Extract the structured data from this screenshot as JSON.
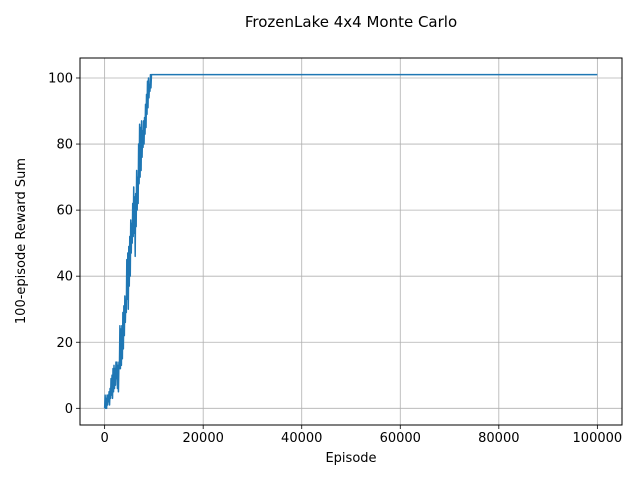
{
  "chart_data": {
    "type": "line",
    "title": "FrozenLake 4x4 Monte Carlo",
    "xlabel": "Episode",
    "ylabel": "100-episode Reward Sum",
    "xlim": [
      -5000,
      105000
    ],
    "ylim": [
      -5.05,
      106.05
    ],
    "xticks": [
      0,
      20000,
      40000,
      60000,
      80000,
      100000
    ],
    "yticks": [
      0,
      20,
      40,
      60,
      80,
      100
    ],
    "grid": true,
    "series": [
      {
        "color": "#1f77b4",
        "points": [
          [
            0,
            0
          ],
          [
            100,
            4
          ],
          [
            200,
            0
          ],
          [
            300,
            3
          ],
          [
            400,
            0
          ],
          [
            500,
            4
          ],
          [
            600,
            1
          ],
          [
            700,
            4
          ],
          [
            800,
            2
          ],
          [
            900,
            5
          ],
          [
            1000,
            1
          ],
          [
            1100,
            6
          ],
          [
            1200,
            3
          ],
          [
            1300,
            9
          ],
          [
            1400,
            4
          ],
          [
            1500,
            10
          ],
          [
            1600,
            3
          ],
          [
            1700,
            12
          ],
          [
            1800,
            5
          ],
          [
            1900,
            13
          ],
          [
            2000,
            6
          ],
          [
            2100,
            12
          ],
          [
            2200,
            7
          ],
          [
            2300,
            14
          ],
          [
            2400,
            9
          ],
          [
            2500,
            14
          ],
          [
            2600,
            6
          ],
          [
            2700,
            13
          ],
          [
            2800,
            5
          ],
          [
            2900,
            14
          ],
          [
            3000,
            12
          ],
          [
            3100,
            25
          ],
          [
            3200,
            12
          ],
          [
            3300,
            24
          ],
          [
            3400,
            13
          ],
          [
            3500,
            25
          ],
          [
            3600,
            15
          ],
          [
            3700,
            29
          ],
          [
            3800,
            18
          ],
          [
            3900,
            31
          ],
          [
            4000,
            22
          ],
          [
            4100,
            34
          ],
          [
            4200,
            26
          ],
          [
            4300,
            33
          ],
          [
            4400,
            29
          ],
          [
            4500,
            45
          ],
          [
            4600,
            33
          ],
          [
            4700,
            47
          ],
          [
            4800,
            30
          ],
          [
            4900,
            49
          ],
          [
            5000,
            37
          ],
          [
            5100,
            52
          ],
          [
            5200,
            40
          ],
          [
            5300,
            57
          ],
          [
            5400,
            47
          ],
          [
            5500,
            56
          ],
          [
            5600,
            50
          ],
          [
            5700,
            62
          ],
          [
            5800,
            52
          ],
          [
            5900,
            67
          ],
          [
            6000,
            53
          ],
          [
            6100,
            64
          ],
          [
            6200,
            46
          ],
          [
            6300,
            65
          ],
          [
            6400,
            55
          ],
          [
            6500,
            72
          ],
          [
            6600,
            60
          ],
          [
            6700,
            70
          ],
          [
            6800,
            62
          ],
          [
            6900,
            80
          ],
          [
            7000,
            68
          ],
          [
            7100,
            86
          ],
          [
            7200,
            70
          ],
          [
            7300,
            85
          ],
          [
            7400,
            72
          ],
          [
            7500,
            87
          ],
          [
            7600,
            76
          ],
          [
            7700,
            84
          ],
          [
            7800,
            79
          ],
          [
            7900,
            87
          ],
          [
            8000,
            80
          ],
          [
            8100,
            88
          ],
          [
            8200,
            83
          ],
          [
            8300,
            92
          ],
          [
            8400,
            85
          ],
          [
            8500,
            95
          ],
          [
            8600,
            89
          ],
          [
            8700,
            99
          ],
          [
            8800,
            91
          ],
          [
            8900,
            100
          ],
          [
            9000,
            94
          ],
          [
            9100,
            98
          ],
          [
            9200,
            96
          ],
          [
            9300,
            101
          ],
          [
            9400,
            97
          ],
          [
            9500,
            101
          ],
          [
            9700,
            101
          ],
          [
            10000,
            101
          ],
          [
            100000,
            101
          ]
        ]
      }
    ]
  }
}
